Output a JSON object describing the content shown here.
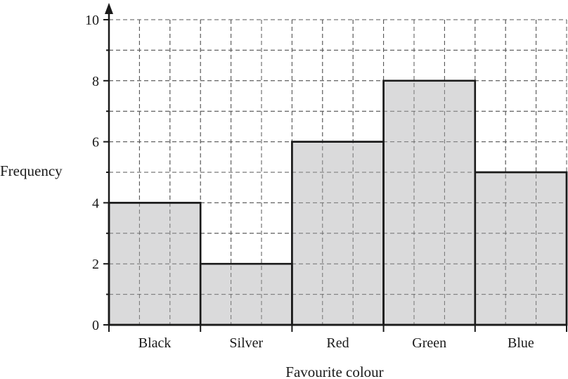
{
  "chart_data": {
    "type": "bar",
    "categories": [
      "Black",
      "Silver",
      "Red",
      "Green",
      "Blue"
    ],
    "values": [
      4,
      2,
      6,
      8,
      5
    ],
    "title": "",
    "xlabel": "Favourite colour",
    "ylabel": "Frequency",
    "ylim": [
      0,
      10
    ],
    "yticks": [
      0,
      2,
      4,
      6,
      8,
      10
    ],
    "grid": true,
    "grid_style": "dashed",
    "colors": {
      "bar_fill": "#d3d3d5",
      "bar_stroke": "#1a1a1a",
      "grid": "#555555",
      "axis": "#1a1a1a"
    }
  }
}
